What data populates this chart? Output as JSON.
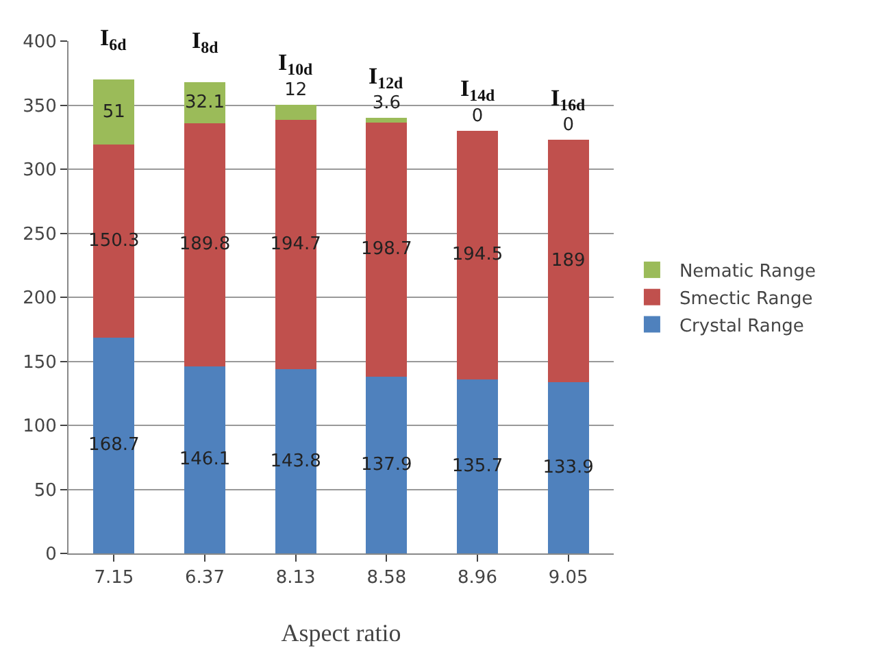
{
  "chart_data": {
    "type": "bar",
    "stacked": true,
    "xlabel": "Aspect ratio",
    "categories": [
      "7.15",
      "6.37",
      "8.13",
      "8.58",
      "8.96",
      "9.05"
    ],
    "series": [
      {
        "name": "Crystal Range",
        "color": "#4f81bd",
        "values": [
          168.7,
          146.1,
          143.8,
          137.9,
          135.7,
          133.9
        ]
      },
      {
        "name": "Smectic Range",
        "color": "#c0504d",
        "values": [
          150.3,
          189.8,
          194.7,
          198.7,
          194.5,
          189
        ]
      },
      {
        "name": "Nematic Range",
        "color": "#9bbb59",
        "values": [
          51,
          32.1,
          12,
          3.6,
          0,
          0
        ]
      }
    ],
    "data_labels": true,
    "ylim": [
      0,
      400
    ],
    "yticks": [
      0,
      50,
      100,
      150,
      200,
      250,
      300,
      350,
      400
    ],
    "grid": "y",
    "legend": "right",
    "annotations": [
      {
        "text": "I$_{6d}$",
        "x": "7.15",
        "y": 370
      },
      {
        "text": "I$_{8d}$",
        "x": "6.37",
        "y": 368
      },
      {
        "text": "I$_{10d}$",
        "x": "8.13",
        "y": 350.5
      },
      {
        "text": "I$_{12d}$",
        "x": "8.58",
        "y": 340.2
      },
      {
        "text": "I$_{14d}$",
        "x": "8.96",
        "y": 330.2
      },
      {
        "text": "I$_{16d}$",
        "x": "9.05",
        "y": 322.9
      }
    ]
  }
}
